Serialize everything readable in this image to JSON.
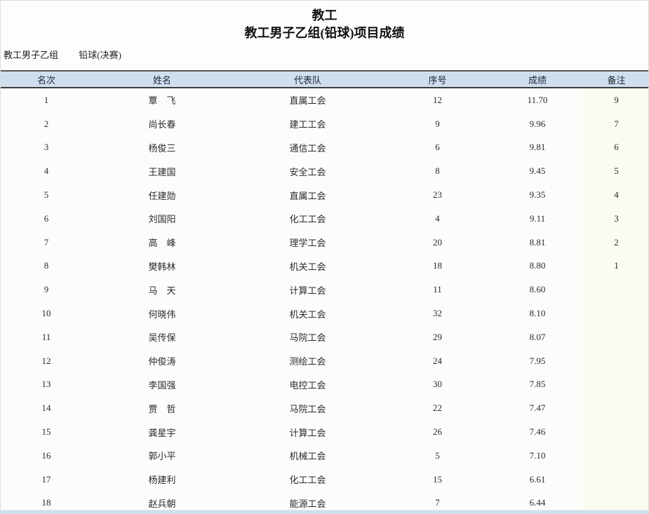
{
  "page": {
    "title": "教工",
    "subtitle": "教工男子乙组(铅球)项目成绩",
    "group_label": "教工男子乙组",
    "event_label": "铅球(决赛)"
  },
  "table": {
    "columns": [
      "名次",
      "姓名",
      "代表队",
      "序号",
      "成绩",
      "备注"
    ],
    "rows": [
      [
        "1",
        "覃　飞",
        "直属工会",
        "12",
        "11.70",
        "9"
      ],
      [
        "2",
        "尚长春",
        "建工工会",
        "9",
        "9.96",
        "7"
      ],
      [
        "3",
        "杨俊三",
        "通信工会",
        "6",
        "9.81",
        "6"
      ],
      [
        "4",
        "王建国",
        "安全工会",
        "8",
        "9.45",
        "5"
      ],
      [
        "5",
        "任建勋",
        "直属工会",
        "23",
        "9.35",
        "4"
      ],
      [
        "6",
        "刘国阳",
        "化工工会",
        "4",
        "9.11",
        "3"
      ],
      [
        "7",
        "高　峰",
        "理学工会",
        "20",
        "8.81",
        "2"
      ],
      [
        "8",
        "樊韩林",
        "机关工会",
        "18",
        "8.80",
        "1"
      ],
      [
        "9",
        "马　天",
        "计算工会",
        "11",
        "8.60",
        ""
      ],
      [
        "10",
        "何晓伟",
        "机关工会",
        "32",
        "8.10",
        ""
      ],
      [
        "11",
        "吴传保",
        "马院工会",
        "29",
        "8.07",
        ""
      ],
      [
        "12",
        "仲俊涛",
        "测绘工会",
        "24",
        "7.95",
        ""
      ],
      [
        "13",
        "李国强",
        "电控工会",
        "30",
        "7.85",
        ""
      ],
      [
        "14",
        "贾　哲",
        "马院工会",
        "22",
        "7.47",
        ""
      ],
      [
        "15",
        "龚星宇",
        "计算工会",
        "26",
        "7.46",
        ""
      ],
      [
        "16",
        "郭小平",
        "机械工会",
        "5",
        "7.10",
        ""
      ],
      [
        "17",
        "杨建利",
        "化工工会",
        "15",
        "6.61",
        ""
      ],
      [
        "18",
        "赵兵朝",
        "能源工会",
        "7",
        "6.44",
        ""
      ]
    ]
  },
  "colors": {
    "header_bg": "#cfdfee",
    "header_rule": "#3d3d3d",
    "body_bg": "#fdfcfa",
    "note_col_bg": "#fafbf1",
    "text": "#2b2b2b"
  }
}
